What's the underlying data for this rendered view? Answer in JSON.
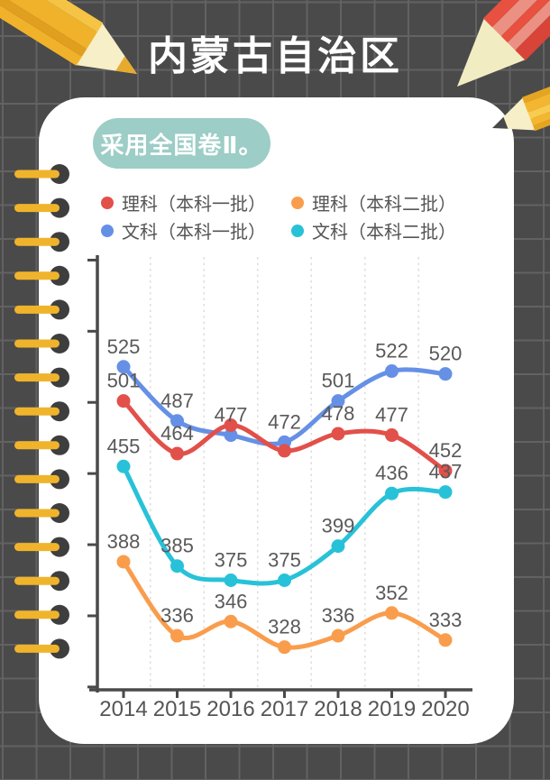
{
  "page": {
    "title": "内蒙古自治区"
  },
  "note_badge": {
    "text": "采用全国卷Ⅱ。"
  },
  "legend": {
    "items": [
      {
        "label": "理科（本科一批）",
        "color": "#e2504a"
      },
      {
        "label": "理科（本科二批）",
        "color": "#f99d4d"
      },
      {
        "label": "文科（本科一批）",
        "color": "#6590e6"
      },
      {
        "label": "文科（本科二批）",
        "color": "#28c2d8"
      }
    ]
  },
  "chart_data": {
    "type": "line",
    "smooth": true,
    "x": [
      "2014",
      "2015",
      "2016",
      "2017",
      "2018",
      "2019",
      "2020"
    ],
    "series": [
      {
        "name": "理科（本科一批）",
        "color": "#e2504a",
        "values": [
          501,
          464,
          484,
          466,
          478,
          477,
          452
        ],
        "point_labels": [
          "501",
          "464",
          "",
          "",
          "478",
          "477",
          "452"
        ]
      },
      {
        "name": "文科（本科一批）",
        "color": "#6590e6",
        "values": [
          525,
          487,
          477,
          472,
          501,
          522,
          520
        ],
        "point_labels": [
          "525",
          "487",
          "477",
          "472",
          "501",
          "522",
          "520"
        ]
      },
      {
        "name": "理科（本科二批）",
        "color": "#f99d4d",
        "values": [
          388,
          336,
          346,
          328,
          336,
          352,
          333
        ],
        "point_labels": [
          "388",
          "336",
          "346",
          "328",
          "336",
          "352",
          "333"
        ]
      },
      {
        "name": "文科（本科二批）",
        "color": "#28c2d8",
        "values": [
          455,
          385,
          375,
          375,
          399,
          436,
          437
        ],
        "point_labels": [
          "455",
          "385",
          "375",
          "375",
          "399",
          "436",
          "437"
        ]
      }
    ],
    "title": "",
    "xlabel": "",
    "ylabel": "",
    "ylim": [
      300,
      600
    ],
    "y_tick_interval": 50,
    "y_tick_labels_visible": false,
    "gridlines": "vertical-dashed-between-categories",
    "legend_position": "top",
    "data_label_color": "#595959",
    "x_axis_label_color": "#555555",
    "axis_color": "#4a4a4a"
  },
  "theme": {
    "background": "#4a4a4a",
    "background_grid_line": "#626262",
    "card": "#ffffff",
    "badge_bg": "#9ccdc6",
    "title_color": "#ffffff",
    "spiral_ring_yellow": "#f0b42c",
    "spiral_hole": "#3e3e3e",
    "pencil_yellow": "#f0b22b",
    "pencil_red": "#e8503f",
    "pencil_wood": "#f7efc8"
  }
}
